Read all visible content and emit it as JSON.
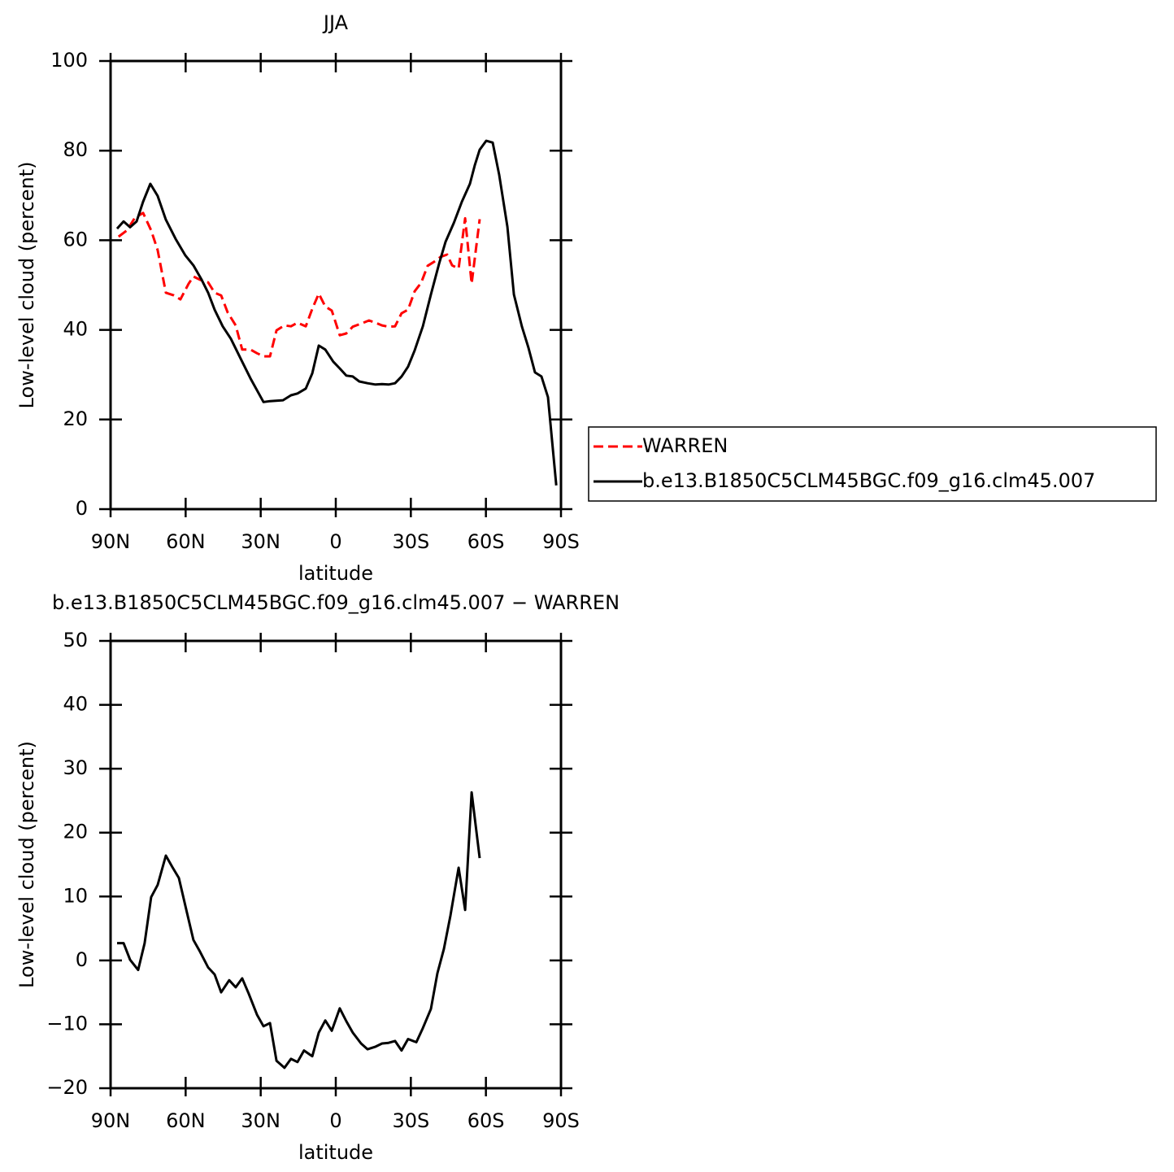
{
  "chart_data": [
    {
      "type": "line",
      "title": "JJA",
      "xlabel": "latitude",
      "ylabel": "Low-level cloud (percent)",
      "xlim": [
        90,
        -90
      ],
      "xticks": [
        {
          "value": 90,
          "label": "90N"
        },
        {
          "value": 60,
          "label": "60N"
        },
        {
          "value": 30,
          "label": "30N"
        },
        0,
        {
          "value": -30,
          "label": "30S"
        },
        {
          "value": -60,
          "label": "60S"
        },
        {
          "value": -90,
          "label": "90S"
        }
      ],
      "ylim": [
        0,
        100
      ],
      "yticks": [
        0,
        20,
        40,
        60,
        80,
        100
      ],
      "legend": "right",
      "series": [
        {
          "name": "WARREN",
          "color": "#ff0000",
          "dash": true,
          "x": [
            86.8,
            83.5,
            80.3,
            77.0,
            73.8,
            71.2,
            67.9,
            64.7,
            62.1,
            58.8,
            56.9,
            54.3,
            51.0,
            48.4,
            45.8,
            43.2,
            40.0,
            37.4,
            34.1,
            31.5,
            28.9,
            26.3,
            23.7,
            20.5,
            17.9,
            15.3,
            12.0,
            9.4,
            6.8,
            4.2,
            1.6,
            -1.6,
            -4.2,
            -6.8,
            -10.1,
            -13.3,
            -15.9,
            -18.5,
            -21.1,
            -23.7,
            -26.3,
            -28.9,
            -31.5,
            -34.1,
            -36.7,
            -39.3,
            -41.9,
            -44.5,
            -46.5,
            -49.1,
            -51.7,
            -54.3,
            -57.5
          ],
          "values": [
            60.8,
            62.2,
            65.0,
            66.1,
            62.2,
            57.8,
            48.3,
            47.7,
            46.8,
            50.3,
            51.9,
            51.2,
            50.6,
            48.3,
            47.7,
            43.9,
            41.0,
            35.6,
            35.6,
            34.8,
            34.1,
            34.1,
            39.9,
            41.0,
            40.8,
            41.6,
            40.8,
            44.7,
            48.1,
            45.2,
            44.3,
            38.8,
            39.2,
            40.7,
            41.4,
            42.1,
            41.6,
            41.0,
            40.7,
            40.8,
            43.7,
            44.5,
            48.6,
            50.5,
            54.3,
            55.2,
            56.3,
            56.8,
            54.4,
            53.7,
            64.9,
            50.3,
            64.7
          ]
        },
        {
          "name": "b.e13.B1850C5CLM45BGC.f09_g16.clm45.007",
          "color": "#000000",
          "dash": false,
          "x": [
            87.4,
            84.8,
            82.2,
            79.6,
            77.0,
            74.1,
            71.2,
            67.9,
            64.0,
            60.1,
            56.9,
            53.6,
            51.0,
            48.4,
            45.2,
            41.9,
            38.0,
            34.1,
            28.9,
            26.3,
            21.1,
            17.9,
            15.3,
            12.0,
            9.4,
            6.8,
            4.2,
            1.0,
            -1.6,
            -4.2,
            -6.8,
            -9.4,
            -12.7,
            -15.9,
            -18.5,
            -21.1,
            -23.7,
            -26.3,
            -28.9,
            -31.5,
            -34.8,
            -38.0,
            -41.3,
            -43.9,
            -47.2,
            -50.4,
            -53.6,
            -55.6,
            -57.5,
            -60.1,
            -62.7,
            -65.3,
            -68.6,
            -71.2,
            -74.4,
            -77.0,
            -79.6,
            -82.2,
            -84.8,
            -88.1
          ],
          "values": [
            62.6,
            64.2,
            62.9,
            64.2,
            68.6,
            72.6,
            69.9,
            64.6,
            60.3,
            56.6,
            54.4,
            51.2,
            48.3,
            44.5,
            40.8,
            38.0,
            33.6,
            29.2,
            23.9,
            24.1,
            24.3,
            25.4,
            25.8,
            26.9,
            30.3,
            36.5,
            35.6,
            32.9,
            31.4,
            29.8,
            29.6,
            28.5,
            28.1,
            27.8,
            27.9,
            27.8,
            28.1,
            29.6,
            31.8,
            35.4,
            40.8,
            47.9,
            54.8,
            59.7,
            63.9,
            68.6,
            72.6,
            76.8,
            80.2,
            82.2,
            81.8,
            74.6,
            63.0,
            47.9,
            40.7,
            36.0,
            30.5,
            29.6,
            25.0,
            5.3
          ]
        }
      ]
    },
    {
      "type": "line",
      "title": "b.e13.B1850C5CLM45BGC.f09_g16.clm45.007 − WARREN",
      "xlabel": "latitude",
      "ylabel": "Low-level cloud (percent)",
      "xlim": [
        90,
        -90
      ],
      "xticks": [
        {
          "value": 90,
          "label": "90N"
        },
        {
          "value": 60,
          "label": "60N"
        },
        {
          "value": 30,
          "label": "30N"
        },
        0,
        {
          "value": -30,
          "label": "30S"
        },
        {
          "value": -60,
          "label": "60S"
        },
        {
          "value": -90,
          "label": "90S"
        }
      ],
      "ylim": [
        -20,
        50
      ],
      "yticks": [
        {
          "value": -20,
          "label": "−20"
        },
        {
          "value": -10,
          "label": "−10"
        },
        0,
        10,
        20,
        30,
        40,
        50
      ],
      "series": [
        {
          "color": "#000000",
          "dash": false,
          "x": [
            87.4,
            84.8,
            82.2,
            79.0,
            76.4,
            73.8,
            71.2,
            67.9,
            65.3,
            62.7,
            59.5,
            56.9,
            54.3,
            51.0,
            48.4,
            45.8,
            42.6,
            40.0,
            37.4,
            34.8,
            31.5,
            28.9,
            26.3,
            23.7,
            20.5,
            17.9,
            15.3,
            12.7,
            9.4,
            6.8,
            4.2,
            1.6,
            -1.6,
            -4.2,
            -6.8,
            -10.1,
            -12.7,
            -15.9,
            -18.5,
            -21.1,
            -23.7,
            -26.3,
            -28.9,
            -32.2,
            -34.8,
            -38.0,
            -40.6,
            -43.2,
            -45.8,
            -49.1,
            -51.7,
            -54.3,
            -57.5
          ],
          "values": [
            2.7,
            2.7,
            0.1,
            -1.5,
            2.7,
            9.9,
            11.8,
            16.4,
            14.6,
            12.9,
            7.5,
            3.2,
            1.4,
            -1.1,
            -2.2,
            -5.0,
            -3.1,
            -4.2,
            -2.8,
            -5.2,
            -8.5,
            -10.3,
            -9.8,
            -15.7,
            -16.8,
            -15.4,
            -15.9,
            -14.1,
            -15.0,
            -11.3,
            -9.4,
            -11.0,
            -7.5,
            -9.5,
            -11.3,
            -13.0,
            -13.9,
            -13.5,
            -13.0,
            -12.9,
            -12.6,
            -14.1,
            -12.3,
            -12.8,
            -10.6,
            -7.6,
            -2.0,
            1.8,
            7.0,
            14.5,
            7.9,
            26.3,
            16.0
          ]
        }
      ]
    }
  ]
}
